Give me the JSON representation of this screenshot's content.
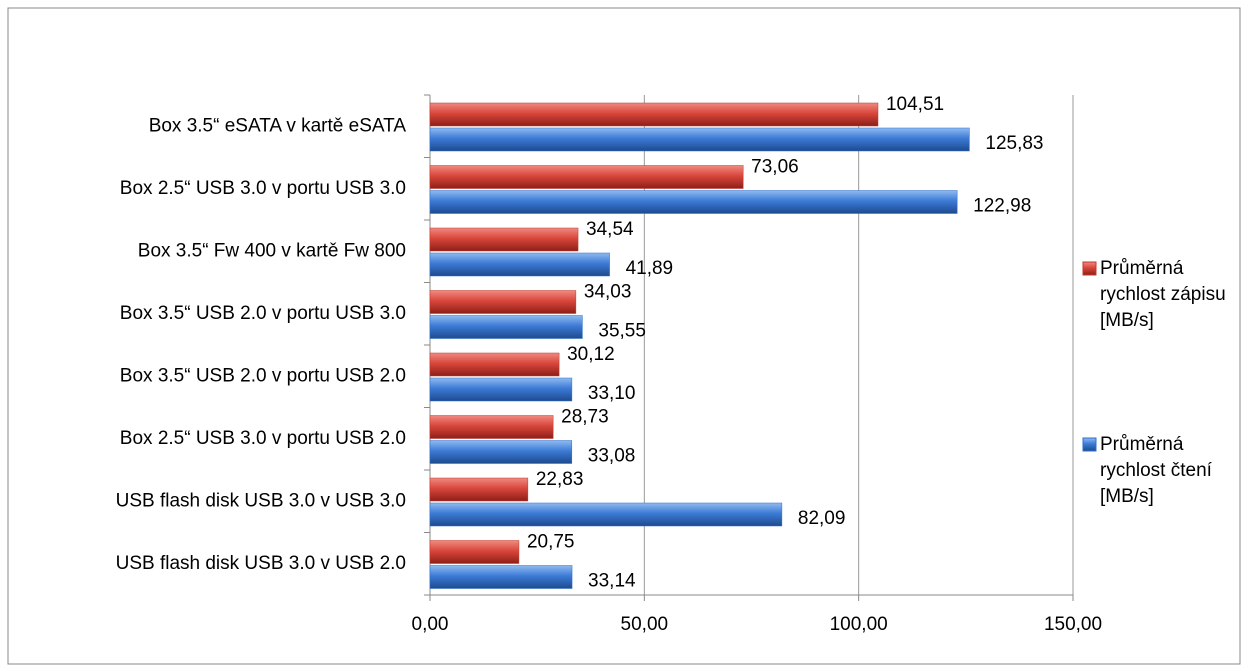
{
  "chart_data": {
    "type": "hbar",
    "categories": [
      "Box 3.5“ eSATA v kartě eSATA",
      "Box 2.5“ USB 3.0 v portu USB 3.0",
      "Box 3.5“ Fw 400 v kartě Fw  800",
      "Box 3.5“ USB 2.0 v portu USB 3.0",
      "Box 3.5“ USB 2.0 v portu USB 2.0",
      "Box 2.5“ USB 3.0  v portu USB 2.0",
      "USB flash disk USB 3.0 v USB 3.0",
      "USB flash disk USB 3.0 v USB 2.0"
    ],
    "series": [
      {
        "name": "Průměrná rychlost zápisu [MB/s]",
        "color": "#c0392b",
        "values": [
          104.51,
          73.06,
          34.54,
          34.03,
          30.12,
          28.73,
          22.83,
          20.75
        ],
        "value_labels": [
          "104,51",
          "73,06",
          "34,54",
          "34,03",
          "30,12",
          "28,73",
          "22,83",
          "20,75"
        ]
      },
      {
        "name": "Průměrná rychlost čtení [MB/s]",
        "color": "#2f6fc9",
        "values": [
          125.83,
          122.98,
          41.89,
          35.55,
          33.1,
          33.08,
          82.09,
          33.14
        ],
        "value_labels": [
          "125,83",
          "122,98",
          "41,89",
          "35,55",
          "33,10",
          "33,08",
          "82,09",
          "33,14"
        ]
      }
    ],
    "xlim": [
      0,
      150
    ],
    "xticks": [
      {
        "value": 0,
        "label": "0,00"
      },
      {
        "value": 50,
        "label": "50,00"
      },
      {
        "value": 100,
        "label": "100,00"
      },
      {
        "value": 150,
        "label": "150,00"
      }
    ],
    "grid": true,
    "legend": "right"
  }
}
